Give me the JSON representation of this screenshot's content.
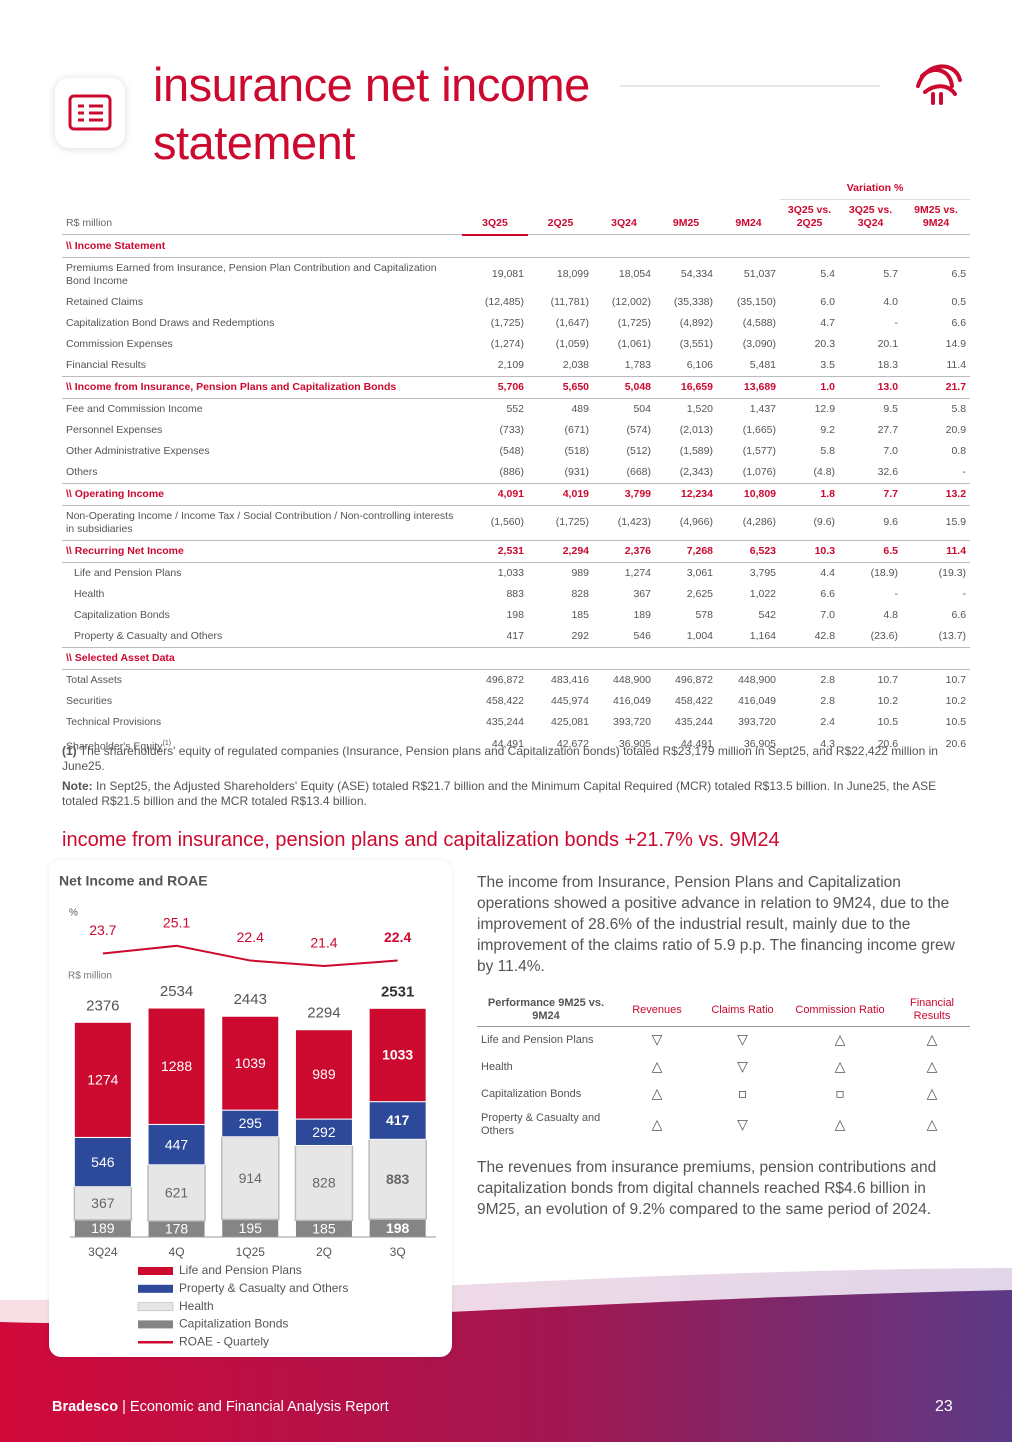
{
  "header": {
    "title": [
      "insurance net income",
      "statement"
    ]
  },
  "table": {
    "unit": "R$ million",
    "variation_header": "Variation %",
    "columns": [
      "3Q25",
      "2Q25",
      "3Q24",
      "9M25",
      "9M24",
      "3Q25 vs. 2Q25",
      "3Q25 vs. 3Q24",
      "9M25 vs. 9M24"
    ],
    "rows": [
      {
        "label": "\\\\ Income Statement"
      },
      {
        "label": "Premiums Earned from Insurance, Pension Plan Contribution and Capitalization Bond Income",
        "values": [
          "19,081",
          "18,099",
          "18,054",
          "54,334",
          "51,037",
          "5.4",
          "5.7",
          "6.5"
        ]
      },
      {
        "label": "Retained Claims",
        "values": [
          "(12,485)",
          "(11,781)",
          "(12,002)",
          "(35,338)",
          "(35,150)",
          "6.0",
          "4.0",
          "0.5"
        ]
      },
      {
        "label": "Capitalization Bond Draws and Redemptions",
        "values": [
          "(1,725)",
          "(1,647)",
          "(1,725)",
          "(4,892)",
          "(4,588)",
          "4.7",
          "-",
          "6.6"
        ]
      },
      {
        "label": "Commission Expenses",
        "values": [
          "(1,274)",
          "(1,059)",
          "(1,061)",
          "(3,551)",
          "(3,090)",
          "20.3",
          "20.1",
          "14.9"
        ]
      },
      {
        "label": "Financial Results",
        "values": [
          "2,109",
          "2,038",
          "1,783",
          "6,106",
          "5,481",
          "3.5",
          "18.3",
          "11.4"
        ]
      },
      {
        "label": "\\\\ Income from Insurance, Pension Plans and Capitalization Bonds",
        "values": [
          "5,706",
          "5,650",
          "5,048",
          "16,659",
          "13,689",
          "1.0",
          "13.0",
          "21.7"
        ]
      },
      {
        "label": "Fee and Commission Income",
        "values": [
          "552",
          "489",
          "504",
          "1,520",
          "1,437",
          "12.9",
          "9.5",
          "5.8"
        ]
      },
      {
        "label": "Personnel Expenses",
        "values": [
          "(733)",
          "(671)",
          "(574)",
          "(2,013)",
          "(1,665)",
          "9.2",
          "27.7",
          "20.9"
        ]
      },
      {
        "label": "Other Administrative Expenses",
        "values": [
          "(548)",
          "(518)",
          "(512)",
          "(1,589)",
          "(1,577)",
          "5.8",
          "7.0",
          "0.8"
        ]
      },
      {
        "label": "Others",
        "values": [
          "(886)",
          "(931)",
          "(668)",
          "(2,343)",
          "(1,076)",
          "(4.8)",
          "32.6",
          "-"
        ]
      },
      {
        "label": "\\\\ Operating Income",
        "values": [
          "4,091",
          "4,019",
          "3,799",
          "12,234",
          "10,809",
          "1.8",
          "7.7",
          "13.2"
        ]
      },
      {
        "label": "Non-Operating Income / Income Tax / Social Contribution / Non-controlling interests in subsidiaries",
        "values": [
          "(1,560)",
          "(1,725)",
          "(1,423)",
          "(4,966)",
          "(4,286)",
          "(9.6)",
          "9.6",
          "15.9"
        ]
      },
      {
        "label": "\\\\ Recurring Net Income",
        "values": [
          "2,531",
          "2,294",
          "2,376",
          "7,268",
          "6,523",
          "10.3",
          "6.5",
          "11.4"
        ],
        "parts": [
          {
            "label": "Life and Pension Plans",
            "values": [
              "1,033",
              "989",
              "1,274",
              "3,061",
              "3,795",
              "4.4",
              "(18.9)",
              "(19.3)"
            ]
          },
          {
            "label": "Health",
            "values": [
              "883",
              "828",
              "367",
              "2,625",
              "1,022",
              "6.6",
              "-",
              "-"
            ]
          },
          {
            "label": "Capitalization Bonds",
            "values": [
              "198",
              "185",
              "189",
              "578",
              "542",
              "7.0",
              "4.8",
              "6.6"
            ]
          },
          {
            "label": "Property & Casualty and Others",
            "values": [
              "417",
              "292",
              "546",
              "1,004",
              "1,164",
              "42.8",
              "(23.6)",
              "(13.7)"
            ]
          }
        ]
      },
      {
        "label": "\\\\ Selected Asset Data"
      },
      {
        "label": "Total Assets",
        "values": [
          "496,872",
          "483,416",
          "448,900",
          "496,872",
          "448,900",
          "2.8",
          "10.7",
          "10.7"
        ]
      },
      {
        "label": "Securities",
        "values": [
          "458,422",
          "445,974",
          "416,049",
          "458,422",
          "416,049",
          "2.8",
          "10.2",
          "10.2"
        ]
      },
      {
        "label": "Technical Provisions",
        "values": [
          "435,244",
          "425,081",
          "393,720",
          "435,244",
          "393,720",
          "2.4",
          "10.5",
          "10.5"
        ]
      },
      {
        "label": "Shareholder's Equity",
        "note": "(1)",
        "values": [
          "44,491",
          "42,672",
          "36,905",
          "44,491",
          "36,905",
          "4.3",
          "20.6",
          "20.6"
        ]
      }
    ]
  },
  "notes": [
    {
      "marker": "(1)",
      "text": "The shareholders' equity of regulated companies (Insurance, Pension plans and Capitalization bonds) totaled R$23,179 million in Sept25, and R$22,422 million in June25."
    },
    {
      "marker": "Note:",
      "text": "In Sept25, the Adjusted Shareholders' Equity (ASE) totaled R$21.7 billion and the Minimum Capital Required (MCR) totaled R$13.5 billion. In June25, the ASE totaled R$21.5 billion and the MCR totaled R$13.4 billion."
    }
  ],
  "subtitle": "income from insurance, pension plans and capitalization bonds +21.7% vs. 9M24",
  "chart_data": {
    "type": "bar",
    "stacked": true,
    "title": "Net Income and ROAE",
    "y_label": "R$ million",
    "y2_label": "%",
    "categories": [
      "3Q24",
      "4Q",
      "1Q25",
      "2Q",
      "3Q"
    ],
    "series": [
      {
        "name": "Life and Pension Plans",
        "color": "#cc092f",
        "values": [
          1274,
          1288,
          1039,
          989,
          1033
        ]
      },
      {
        "name": "Property & Casualty and Others",
        "color": "#2d4a9a",
        "values": [
          546,
          447,
          295,
          292,
          417
        ]
      },
      {
        "name": "Health",
        "color": "#e6e6e6",
        "values": [
          367,
          621,
          914,
          828,
          883
        ]
      },
      {
        "name": "Capitalization Bonds",
        "color": "#858585",
        "values": [
          189,
          178,
          195,
          185,
          198
        ]
      }
    ],
    "totals": [
      2376,
      2534,
      2443,
      2294,
      2531
    ],
    "line": {
      "name": "ROAE - Quartely",
      "color": "#cc092f",
      "axis": "y2",
      "values": [
        23.7,
        25.1,
        22.4,
        21.4,
        22.4
      ]
    },
    "ylim": [
      0,
      2800
    ],
    "y2lim": [
      17,
      28
    ]
  },
  "paragraphs": [
    "The income from Insurance, Pension Plans and Capitalization operations showed a positive advance in relation to 9M24, due to the improvement of 28.6% of the industrial result, mainly due to the improvement of the claims ratio of 5.9 p.p. The financing income grew by 11.4%.",
    "The revenues from insurance premiums, pension contributions and capitalization bonds from digital channels reached R$4.6 billion in 9M25, an evolution of 9.2% compared to the same period of 2024."
  ],
  "performance": {
    "header": "Performance 9M25 vs. 9M24",
    "columns": [
      "Revenues",
      "Claims Ratio",
      "Commission Ratio",
      "Financial Results"
    ],
    "rows": [
      {
        "label": "Life and Pension Plans",
        "values": [
          "▽",
          "▽",
          "△",
          "△"
        ]
      },
      {
        "label": "Health",
        "values": [
          "△",
          "▽",
          "△",
          "△"
        ]
      },
      {
        "label": "Capitalization Bonds",
        "values": [
          "△",
          "▫",
          "▫",
          "△"
        ]
      },
      {
        "label": "Property & Casualty and Others",
        "values": [
          "△",
          "▽",
          "△",
          "△"
        ]
      }
    ]
  },
  "footer": {
    "brand": "Bradesco",
    "report": "| Economic and Financial Analysis Report",
    "page": "23"
  }
}
